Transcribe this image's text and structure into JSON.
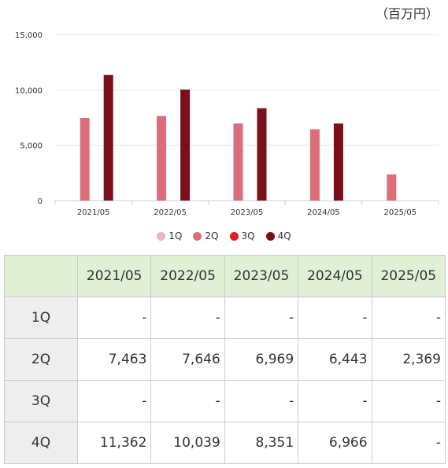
{
  "unit_label": "（百万円）",
  "colors": {
    "1Q": "#e6b9bd",
    "2Q": "#dc6e7b",
    "3Q": "#e01b22",
    "4Q": "#7a1018",
    "grid": "#e6e6e6",
    "axis_text": "#333333"
  },
  "legend": [
    {
      "key": "1Q",
      "label": "1Q"
    },
    {
      "key": "2Q",
      "label": "2Q"
    },
    {
      "key": "3Q",
      "label": "3Q"
    },
    {
      "key": "4Q",
      "label": "4Q"
    }
  ],
  "chart_data": {
    "type": "bar",
    "title": "",
    "xlabel": "",
    "ylabel": "",
    "ylim": [
      0,
      15000
    ],
    "yticks": [
      0,
      5000,
      10000,
      15000
    ],
    "ytick_labels": [
      "0",
      "5,000",
      "10,000",
      "15,000"
    ],
    "grid": true,
    "legend_position": "bottom",
    "categories": [
      "2021/05",
      "2022/05",
      "2023/05",
      "2024/05",
      "2025/05"
    ],
    "series": [
      {
        "name": "1Q",
        "values": [
          null,
          null,
          null,
          null,
          null
        ]
      },
      {
        "name": "2Q",
        "values": [
          7463,
          7646,
          6969,
          6443,
          2369
        ]
      },
      {
        "name": "3Q",
        "values": [
          null,
          null,
          null,
          null,
          null
        ]
      },
      {
        "name": "4Q",
        "values": [
          11362,
          10039,
          8351,
          6966,
          null
        ]
      }
    ]
  },
  "table": {
    "headers": [
      "",
      "2021/05",
      "2022/05",
      "2023/05",
      "2024/05",
      "2025/05"
    ],
    "rows": [
      {
        "label": "1Q",
        "cells": [
          "-",
          "-",
          "-",
          "-",
          "-"
        ]
      },
      {
        "label": "2Q",
        "cells": [
          "7,463",
          "7,646",
          "6,969",
          "6,443",
          "2,369"
        ]
      },
      {
        "label": "3Q",
        "cells": [
          "-",
          "-",
          "-",
          "-",
          "-"
        ]
      },
      {
        "label": "4Q",
        "cells": [
          "11,362",
          "10,039",
          "8,351",
          "6,966",
          "-"
        ]
      }
    ]
  }
}
